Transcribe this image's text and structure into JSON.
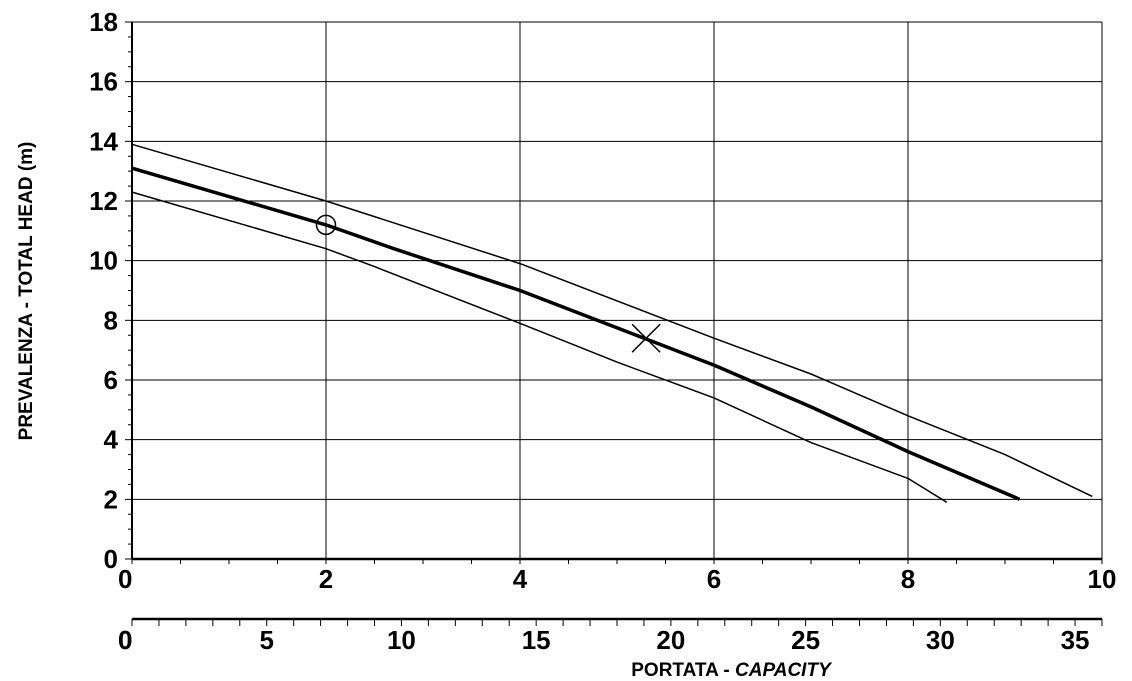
{
  "chart_data": {
    "type": "line",
    "title": "",
    "xlabel": "PORTATA - ",
    "xlabel_italic": "CAPACITY",
    "ylabel": "PREVALENZA - TOTAL HEAD (m)",
    "xlim": [
      0,
      10
    ],
    "ylim": [
      0,
      18
    ],
    "x_ticks": [
      "0",
      "2",
      "4",
      "6",
      "8",
      "10"
    ],
    "y_ticks": [
      "0",
      "2",
      "4",
      "6",
      "8",
      "10",
      "12",
      "14",
      "16",
      "18"
    ],
    "secondary_axis": {
      "range": [
        0,
        36
      ],
      "tick_labels": [
        "0",
        "0",
        "5",
        "10",
        "15",
        "20",
        "25",
        "30",
        "35"
      ]
    },
    "grid": true,
    "series": [
      {
        "name": "",
        "style": "thin",
        "points": [
          [
            0,
            13.9
          ],
          [
            2,
            12.0
          ],
          [
            4,
            9.9
          ],
          [
            6,
            7.4
          ],
          [
            7,
            6.2
          ],
          [
            8,
            4.8
          ],
          [
            9,
            3.5
          ],
          [
            9.9,
            2.1
          ]
        ]
      },
      {
        "name": "",
        "style": "thick",
        "points": [
          [
            0,
            13.1
          ],
          [
            2,
            11.2
          ],
          [
            2.7,
            10.4
          ],
          [
            4,
            9.0
          ],
          [
            6,
            6.5
          ],
          [
            6.5,
            5.8
          ],
          [
            7,
            5.1
          ],
          [
            8,
            3.6
          ],
          [
            9.15,
            2.0
          ]
        ]
      },
      {
        "name": "",
        "style": "thin",
        "points": [
          [
            0,
            12.3
          ],
          [
            2,
            10.4
          ],
          [
            2.5,
            9.8
          ],
          [
            4,
            7.9
          ],
          [
            5,
            6.6
          ],
          [
            6,
            5.4
          ],
          [
            7,
            3.9
          ],
          [
            8,
            2.7
          ],
          [
            8.4,
            1.9
          ]
        ]
      }
    ],
    "markers": [
      {
        "type": "circle",
        "x": 2.0,
        "y": 11.2
      },
      {
        "type": "cross",
        "x": 5.3,
        "y": 7.4
      }
    ]
  }
}
